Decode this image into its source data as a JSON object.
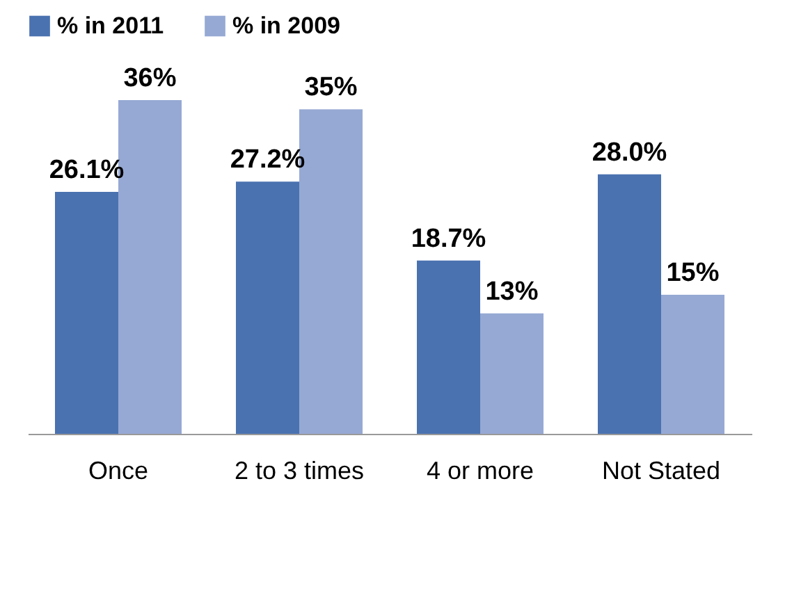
{
  "chart_data": {
    "type": "bar",
    "categories": [
      "Once",
      "2 to 3 times",
      "4 or more",
      "Not Stated"
    ],
    "series": [
      {
        "name": "% in 2011",
        "color": "#4a72b0",
        "values": [
          26.1,
          27.2,
          18.7,
          28.0
        ],
        "value_labels": [
          "26.1%",
          "27.2%",
          "18.7%",
          "28.0%"
        ]
      },
      {
        "name": "% in 2009",
        "color": "#96a9d4",
        "values": [
          36,
          35,
          13,
          15
        ],
        "value_labels": [
          "36%",
          "35%",
          "13%",
          "15%"
        ]
      }
    ],
    "legend": "top",
    "tick_labels": "x",
    "grid": false
  }
}
